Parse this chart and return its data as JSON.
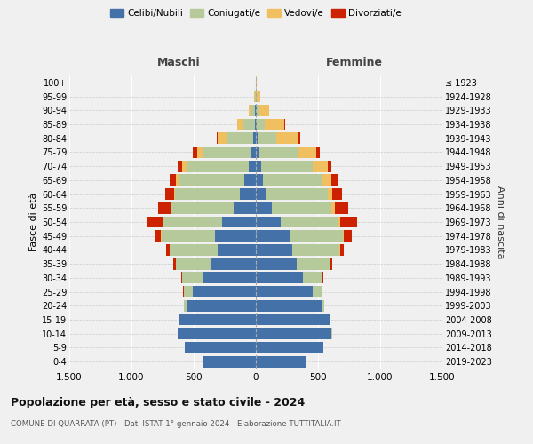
{
  "age_groups": [
    "0-4",
    "5-9",
    "10-14",
    "15-19",
    "20-24",
    "25-29",
    "30-34",
    "35-39",
    "40-44",
    "45-49",
    "50-54",
    "55-59",
    "60-64",
    "65-69",
    "70-74",
    "75-79",
    "80-84",
    "85-89",
    "90-94",
    "95-99",
    "100+"
  ],
  "birth_years": [
    "2019-2023",
    "2014-2018",
    "2009-2013",
    "2004-2008",
    "1999-2003",
    "1994-1998",
    "1989-1993",
    "1984-1988",
    "1979-1983",
    "1974-1978",
    "1969-1973",
    "1964-1968",
    "1959-1963",
    "1954-1958",
    "1949-1953",
    "1944-1948",
    "1939-1943",
    "1934-1938",
    "1929-1933",
    "1924-1928",
    "≤ 1923"
  ],
  "colors": {
    "celibi": "#4472a8",
    "coniugati": "#b5c99a",
    "vedovi": "#f0c060",
    "divorziati": "#cc2200"
  },
  "males": {
    "celibi": [
      430,
      570,
      630,
      620,
      560,
      510,
      430,
      360,
      310,
      330,
      270,
      180,
      130,
      90,
      60,
      35,
      20,
      10,
      5,
      3,
      2
    ],
    "coniugati": [
      0,
      0,
      2,
      5,
      20,
      70,
      160,
      280,
      380,
      430,
      470,
      500,
      520,
      530,
      490,
      390,
      210,
      90,
      30,
      5,
      0
    ],
    "vedovi": [
      0,
      0,
      0,
      0,
      0,
      2,
      2,
      2,
      2,
      3,
      3,
      5,
      10,
      20,
      40,
      50,
      80,
      50,
      20,
      5,
      0
    ],
    "divorziati": [
      0,
      0,
      0,
      0,
      2,
      5,
      10,
      20,
      30,
      50,
      130,
      100,
      70,
      50,
      40,
      30,
      5,
      2,
      0,
      0,
      0
    ]
  },
  "females": {
    "nubili": [
      400,
      540,
      610,
      590,
      530,
      460,
      380,
      330,
      290,
      270,
      200,
      130,
      85,
      55,
      40,
      25,
      15,
      10,
      5,
      3,
      2
    ],
    "coniugate": [
      0,
      0,
      2,
      5,
      20,
      65,
      150,
      260,
      380,
      430,
      460,
      480,
      490,
      470,
      420,
      310,
      150,
      60,
      20,
      5,
      0
    ],
    "vedove": [
      0,
      0,
      0,
      0,
      0,
      2,
      3,
      3,
      5,
      10,
      15,
      25,
      40,
      80,
      120,
      150,
      180,
      160,
      80,
      25,
      2
    ],
    "divorziate": [
      0,
      0,
      0,
      0,
      2,
      5,
      10,
      20,
      30,
      60,
      140,
      110,
      80,
      50,
      30,
      30,
      10,
      5,
      0,
      0,
      0
    ]
  },
  "title": "Popolazione per età, sesso e stato civile - 2024",
  "subtitle": "COMUNE DI QUARRATA (PT) - Dati ISTAT 1° gennaio 2024 - Elaborazione TUTTITALIA.IT",
  "xlabel_left": "Maschi",
  "xlabel_right": "Femmine",
  "ylabel_left": "Fasce di età",
  "ylabel_right": "Anni di nascita",
  "xlim": 1500,
  "legend_labels": [
    "Celibi/Nubili",
    "Coniugati/e",
    "Vedovi/e",
    "Divorziati/e"
  ],
  "background_color": "#f0f0f0"
}
